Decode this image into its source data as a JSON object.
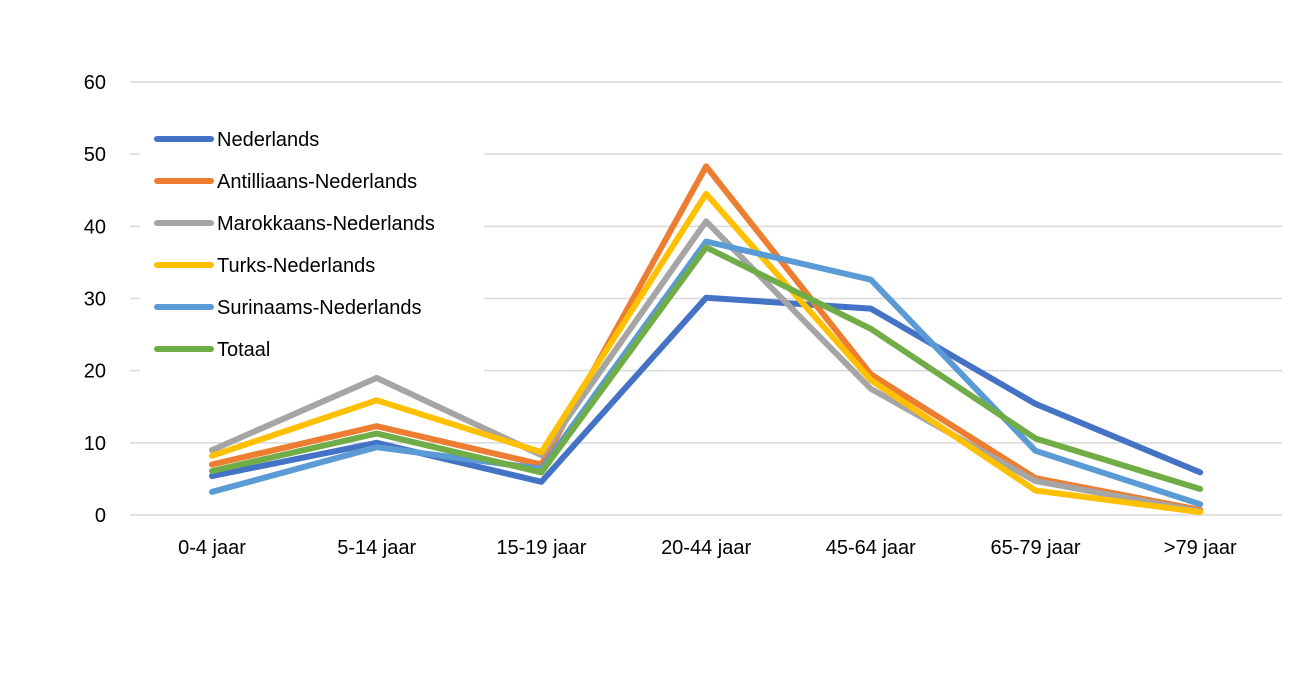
{
  "chart_data": {
    "type": "line",
    "title": "",
    "xlabel": "",
    "ylabel": "",
    "categories": [
      "0-4 jaar",
      "5-14 jaar",
      "15-19 jaar",
      "20-44 jaar",
      "45-64 jaar",
      "65-79 jaar",
      ">79 jaar"
    ],
    "ylim": [
      0,
      60
    ],
    "yticks": [
      0,
      10,
      20,
      30,
      40,
      50,
      60
    ],
    "grid": true,
    "legend_position": "top-left",
    "series": [
      {
        "name": "Nederlands",
        "color": "#4472C4",
        "values": [
          5.4,
          10.0,
          4.6,
          30.1,
          28.6,
          15.4,
          5.9
        ]
      },
      {
        "name": "Antilliaans-Nederlands",
        "color": "#ED7D31",
        "values": [
          7.0,
          12.3,
          7.0,
          48.3,
          19.5,
          5.1,
          0.7
        ]
      },
      {
        "name": "Marokkaans-Nederlands",
        "color": "#A5A5A5",
        "values": [
          9.0,
          19.0,
          8.3,
          40.7,
          17.5,
          4.7,
          0.5
        ]
      },
      {
        "name": "Turks-Nederlands",
        "color": "#FFC000",
        "values": [
          8.2,
          15.9,
          8.7,
          44.5,
          18.7,
          3.4,
          0.4
        ]
      },
      {
        "name": "Surinaams-Nederlands",
        "color": "#5B9BD5",
        "values": [
          3.2,
          9.4,
          6.4,
          37.9,
          32.6,
          8.9,
          1.5
        ]
      },
      {
        "name": "Totaal",
        "color": "#70AD47",
        "values": [
          6.1,
          11.3,
          5.9,
          37.1,
          25.8,
          10.6,
          3.6
        ]
      }
    ]
  }
}
